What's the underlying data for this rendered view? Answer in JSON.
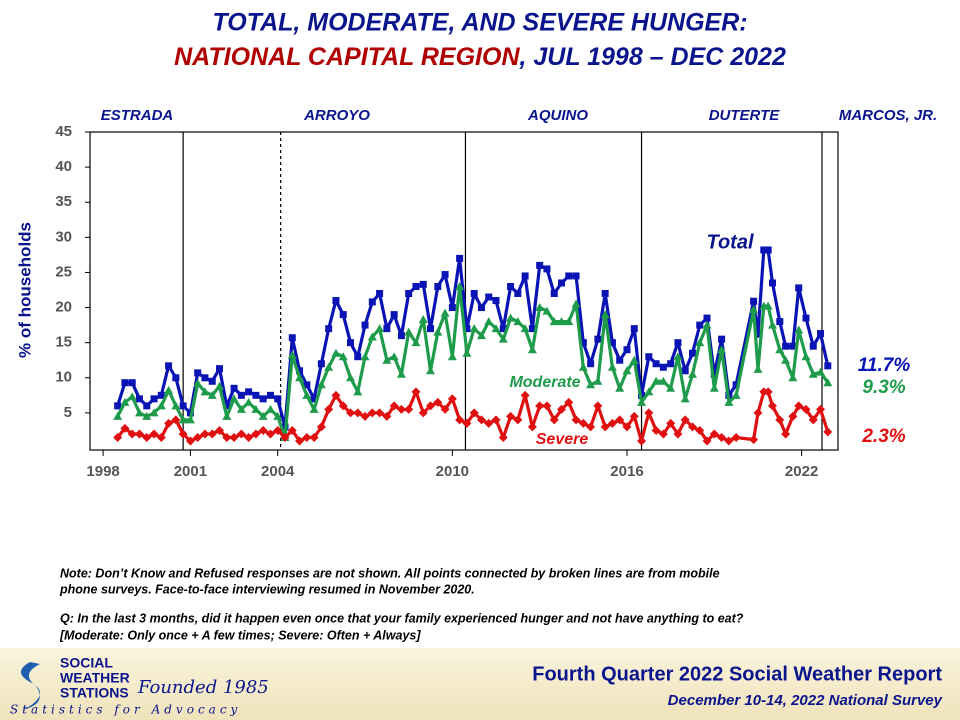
{
  "chart_data": {
    "type": "line",
    "title_line1": "TOTAL, MODERATE, AND SEVERE HUNGER:",
    "title_region": "NATIONAL CAPITAL REGION",
    "title_period": ", JUL 1998 – DEC 2022",
    "ylabel": "% of households",
    "eras": [
      "ESTRADA",
      "ARROYO",
      "AQUINO",
      "DUTERTE",
      "MARCOS, JR."
    ],
    "boundaries": [
      {
        "value": 2000.75,
        "dashed": false
      },
      {
        "value": 2004.1,
        "dashed": true
      },
      {
        "value": 2010.45,
        "dashed": false
      },
      {
        "value": 2016.5,
        "dashed": false
      },
      {
        "value": 2022.7,
        "dashed": false
      }
    ],
    "xlim": [
      1997.55,
      2023.25
    ],
    "xticks": [
      1998,
      2001,
      2004,
      2010,
      2016,
      2022
    ],
    "ylim": [
      0,
      45
    ],
    "yticks": [
      5,
      10,
      15,
      20,
      25,
      30,
      35,
      40,
      45
    ],
    "x": [
      1998.5,
      1998.75,
      1999,
      1999.25,
      1999.5,
      1999.75,
      2000,
      2000.25,
      2000.5,
      2000.75,
      2001,
      2001.25,
      2001.5,
      2001.75,
      2002,
      2002.25,
      2002.5,
      2002.75,
      2003,
      2003.25,
      2003.5,
      2003.75,
      2004,
      2004.25,
      2004.5,
      2004.75,
      2005,
      2005.25,
      2005.5,
      2005.75,
      2006,
      2006.25,
      2006.5,
      2006.75,
      2007,
      2007.25,
      2007.5,
      2007.75,
      2008,
      2008.25,
      2008.5,
      2008.75,
      2009,
      2009.25,
      2009.5,
      2009.75,
      2010,
      2010.25,
      2010.5,
      2010.75,
      2011,
      2011.25,
      2011.5,
      2011.75,
      2012,
      2012.25,
      2012.5,
      2012.75,
      2013,
      2013.25,
      2013.5,
      2013.75,
      2014,
      2014.25,
      2014.5,
      2014.75,
      2015,
      2015.25,
      2015.5,
      2015.75,
      2016,
      2016.25,
      2016.5,
      2016.75,
      2017,
      2017.25,
      2017.5,
      2017.75,
      2018,
      2018.25,
      2018.5,
      2018.75,
      2019,
      2019.25,
      2019.5,
      2019.75,
      2020.35,
      2020.5,
      2020.7,
      2020.85,
      2021,
      2021.25,
      2021.45,
      2021.7,
      2021.9,
      2022.15,
      2022.4,
      2022.65,
      2022.9
    ],
    "series": [
      {
        "name": "Total",
        "color": "#0a14b4",
        "marker": "square",
        "end_label": "11.7%",
        "values": [
          6,
          9.3,
          9.3,
          7,
          6,
          7,
          7.5,
          11.7,
          10,
          6,
          5,
          10.7,
          10,
          9.5,
          11.3,
          6,
          8.5,
          7.5,
          8,
          7.5,
          7,
          7.5,
          7,
          3,
          15.7,
          11,
          9,
          7,
          12,
          17,
          21,
          19,
          15,
          13,
          17.5,
          20.8,
          22,
          17,
          19,
          16,
          22,
          23,
          23.3,
          17,
          23,
          24.7,
          20,
          27,
          17,
          22,
          20,
          21.5,
          21,
          17,
          23,
          22,
          24.5,
          17,
          26,
          25.5,
          22,
          23.5,
          24.5,
          24.5,
          15,
          12,
          15.5,
          22,
          15,
          12.5,
          14,
          17,
          7.5,
          13,
          12,
          11.5,
          12,
          15,
          11,
          13.5,
          17.5,
          18.5,
          10.5,
          15.5,
          7.5,
          9,
          20.9,
          16.2,
          28.2,
          28.2,
          23.5,
          18,
          14.5,
          14.5,
          22.8,
          18.5,
          14.5,
          16.3,
          11.7
        ]
      },
      {
        "name": "Moderate",
        "color": "#1e9b4b",
        "marker": "triangle",
        "end_label": "9.3%",
        "values": [
          4.5,
          6.5,
          7.3,
          5,
          4.5,
          5,
          6,
          8.2,
          6,
          4,
          4,
          9.2,
          8,
          7.5,
          8.8,
          4.5,
          7,
          5.5,
          6.5,
          5.5,
          4.5,
          5.5,
          4.5,
          1.5,
          13.2,
          10,
          7.5,
          5.5,
          9,
          11.5,
          13.5,
          13,
          10,
          8,
          13,
          15.8,
          17,
          12.5,
          13,
          10.5,
          16.5,
          15,
          18.3,
          11,
          16.5,
          19.2,
          13,
          23,
          13.5,
          17,
          16,
          18,
          17,
          15.5,
          18.5,
          18,
          17,
          14,
          20,
          19.5,
          18,
          18,
          18,
          20.5,
          11.5,
          9,
          9.5,
          19,
          11.5,
          8.5,
          11,
          12.5,
          6.5,
          8,
          9.5,
          9.5,
          8.5,
          13,
          7,
          10.5,
          15,
          17.5,
          8.5,
          14,
          6.5,
          7.5,
          19.7,
          11.2,
          20.2,
          20.2,
          17.5,
          14,
          12.5,
          10,
          16.8,
          13,
          10.5,
          10.8,
          9.3
        ]
      },
      {
        "name": "Severe",
        "color": "#e01010",
        "marker": "diamond",
        "end_label": "2.3%",
        "values": [
          1.5,
          2.8,
          2,
          2,
          1.5,
          2,
          1.5,
          3.5,
          4,
          2,
          1,
          1.5,
          2,
          2,
          2.5,
          1.5,
          1.5,
          2,
          1.5,
          2,
          2.5,
          2,
          2.5,
          1.5,
          2.5,
          1,
          1.5,
          1.5,
          3,
          5.5,
          7.5,
          6,
          5,
          5,
          4.5,
          5,
          5,
          4.5,
          6,
          5.5,
          5.5,
          8,
          5,
          6,
          6.5,
          5.5,
          7,
          4,
          3.5,
          5,
          4,
          3.5,
          4,
          1.5,
          4.5,
          4,
          7.5,
          3,
          6,
          6,
          4,
          5.5,
          6.5,
          4,
          3.5,
          3,
          6,
          3,
          3.5,
          4,
          3,
          4.5,
          1,
          5,
          2.5,
          2,
          3.5,
          2,
          4,
          3,
          2.5,
          1,
          2,
          1.5,
          1,
          1.5,
          1.2,
          5,
          8,
          8,
          6,
          4,
          2,
          4.5,
          6,
          5.5,
          4,
          5.5,
          2.3
        ]
      }
    ],
    "notes": [
      "Note: Don’t Know and Refused responses are not shown. All points connected by broken lines are from mobile",
      "phone surveys. Face-to-face interviewing resumed in November 2020.",
      "Q: In the last 3 months, did it happen even once that your family experienced hunger and not have anything to eat?",
      "[Moderate: Only once + A few times; Severe: Often + Always]"
    ],
    "footer": {
      "org_line1": "SOCIAL",
      "org_line2": "WEATHER",
      "org_line3": "STATIONS",
      "founded": "Founded 1985",
      "tagline": "Statistics for Advocacy",
      "report": "Fourth Quarter 2022 Social Weather Report",
      "survey": "December 10-14, 2022 National Survey"
    }
  }
}
